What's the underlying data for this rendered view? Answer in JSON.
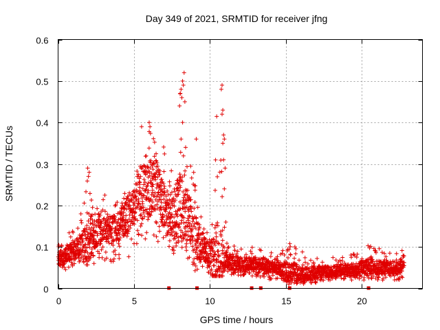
{
  "chart_data": {
    "type": "scatter",
    "title": "Day 349 of 2021, SRMTID for receiver jfng",
    "xlabel": "GPS time / hours",
    "ylabel": "SRMTID / TECUs",
    "xlim": [
      0,
      24
    ],
    "ylim": [
      0,
      0.6
    ],
    "x_ticks": [
      0,
      5,
      10,
      15,
      20
    ],
    "x_tick_labels": [
      "0",
      "5",
      "10",
      "15",
      "20"
    ],
    "y_ticks": [
      0,
      0.1,
      0.2,
      0.3,
      0.4,
      0.5,
      0.6
    ],
    "y_tick_labels": [
      "0",
      "0.1",
      "0.2",
      "0.3",
      "0.4",
      "0.5",
      "0.6"
    ],
    "grid": true,
    "marker": "+",
    "series": [
      {
        "name": "SRMTID",
        "color": "#e00000",
        "envelope_x": [
          0,
          0.5,
          1,
          1.5,
          2,
          2.5,
          3,
          3.5,
          4,
          4.5,
          5,
          5.5,
          6,
          6.5,
          7,
          7.5,
          8,
          8.5,
          9,
          9.5,
          10,
          10.5,
          11,
          11.5,
          12,
          12.5,
          13,
          13.5,
          14,
          14.5,
          15,
          15.5,
          16,
          16.5,
          17,
          17.5,
          18,
          18.5,
          19,
          19.5,
          20,
          20.5,
          21,
          21.5,
          22,
          22.5,
          22.8
        ],
        "envelope_median": [
          0.07,
          0.08,
          0.09,
          0.1,
          0.12,
          0.14,
          0.15,
          0.14,
          0.15,
          0.17,
          0.2,
          0.23,
          0.24,
          0.25,
          0.2,
          0.17,
          0.2,
          0.18,
          0.13,
          0.1,
          0.08,
          0.07,
          0.07,
          0.06,
          0.06,
          0.06,
          0.06,
          0.06,
          0.05,
          0.05,
          0.04,
          0.04,
          0.035,
          0.035,
          0.04,
          0.04,
          0.04,
          0.045,
          0.045,
          0.045,
          0.05,
          0.055,
          0.05,
          0.05,
          0.05,
          0.05,
          0.07
        ],
        "envelope_max": [
          0.11,
          0.13,
          0.15,
          0.18,
          0.29,
          0.24,
          0.25,
          0.2,
          0.21,
          0.28,
          0.32,
          0.39,
          0.41,
          0.37,
          0.35,
          0.3,
          0.52,
          0.36,
          0.28,
          0.19,
          0.15,
          0.49,
          0.12,
          0.11,
          0.1,
          0.1,
          0.1,
          0.09,
          0.09,
          0.08,
          0.11,
          0.11,
          0.09,
          0.08,
          0.08,
          0.08,
          0.08,
          0.08,
          0.08,
          0.09,
          0.09,
          0.11,
          0.1,
          0.09,
          0.09,
          0.1,
          0.1
        ],
        "envelope_min": [
          0.03,
          0.04,
          0.05,
          0.06,
          0.05,
          0.06,
          0.07,
          0.06,
          0.06,
          0.07,
          0.09,
          0.1,
          0.11,
          0.1,
          0.1,
          0.08,
          0.1,
          0.07,
          0.04,
          0.03,
          0.03,
          0.03,
          0.03,
          0.03,
          0.03,
          0.03,
          0.03,
          0.02,
          0.02,
          0.02,
          0.01,
          0.01,
          0.01,
          0.01,
          0.01,
          0.02,
          0.02,
          0.02,
          0.02,
          0.02,
          0.02,
          0.02,
          0.02,
          0.02,
          0.02,
          0.02,
          0.03
        ],
        "spikes": [
          {
            "x": 8.05,
            "y": 0.47
          },
          {
            "x": 8.1,
            "y": 0.48
          },
          {
            "x": 8.15,
            "y": 0.46
          },
          {
            "x": 8.2,
            "y": 0.5
          },
          {
            "x": 8.25,
            "y": 0.49
          },
          {
            "x": 8.3,
            "y": 0.52
          },
          {
            "x": 8.35,
            "y": 0.45
          },
          {
            "x": 8.0,
            "y": 0.44
          },
          {
            "x": 8.2,
            "y": 0.4
          },
          {
            "x": 8.4,
            "y": 0.34
          },
          {
            "x": 8.1,
            "y": 0.36
          },
          {
            "x": 10.75,
            "y": 0.48
          },
          {
            "x": 10.8,
            "y": 0.49
          },
          {
            "x": 10.85,
            "y": 0.43
          },
          {
            "x": 10.8,
            "y": 0.42
          },
          {
            "x": 10.9,
            "y": 0.37
          },
          {
            "x": 10.85,
            "y": 0.35
          },
          {
            "x": 10.95,
            "y": 0.36
          },
          {
            "x": 10.9,
            "y": 0.31
          },
          {
            "x": 10.95,
            "y": 0.24
          },
          {
            "x": 11.0,
            "y": 0.29
          },
          {
            "x": 11.05,
            "y": 0.16
          },
          {
            "x": 1.95,
            "y": 0.29
          },
          {
            "x": 2.0,
            "y": 0.27
          },
          {
            "x": 2.05,
            "y": 0.28
          },
          {
            "x": 6.0,
            "y": 0.4
          },
          {
            "x": 6.05,
            "y": 0.39
          },
          {
            "x": 5.5,
            "y": 0.39
          },
          {
            "x": 9.1,
            "y": 0.36
          }
        ]
      }
    ],
    "gap_markers_x": [
      7.3,
      9.15,
      12.75,
      13.35,
      15.25,
      20.45
    ]
  }
}
